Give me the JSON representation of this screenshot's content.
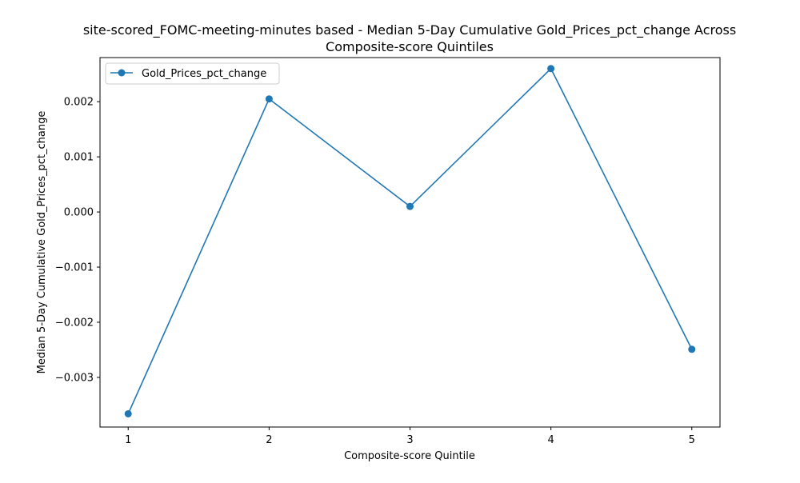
{
  "chart_data": {
    "type": "line",
    "title_line1": "site-scored_FOMC-meeting-minutes based - Median 5-Day Cumulative Gold_Prices_pct_change Across",
    "title_line2": "Composite-score Quintiles",
    "xlabel": "Composite-score Quintile",
    "ylabel": "Median 5-Day Cumulative Gold_Prices_pct_change",
    "x": [
      1,
      2,
      3,
      4,
      5
    ],
    "xticks": [
      "1",
      "2",
      "3",
      "4",
      "5"
    ],
    "yticks": [
      0.002,
      0.001,
      0.0,
      -0.001,
      -0.002,
      -0.003
    ],
    "ytick_labels": [
      "0.002",
      "0.001",
      "0.000",
      "−0.001",
      "−0.002",
      "−0.003"
    ],
    "xlim": [
      0.8,
      5.2
    ],
    "ylim": [
      -0.0039,
      0.0028
    ],
    "grid": false,
    "legend_position": "top-left",
    "series": [
      {
        "name": "Gold_Prices_pct_change",
        "color": "#1f77b4",
        "marker": "circle",
        "values": [
          -0.00366,
          0.00205,
          0.0001,
          0.0026,
          -0.00249
        ]
      }
    ]
  }
}
